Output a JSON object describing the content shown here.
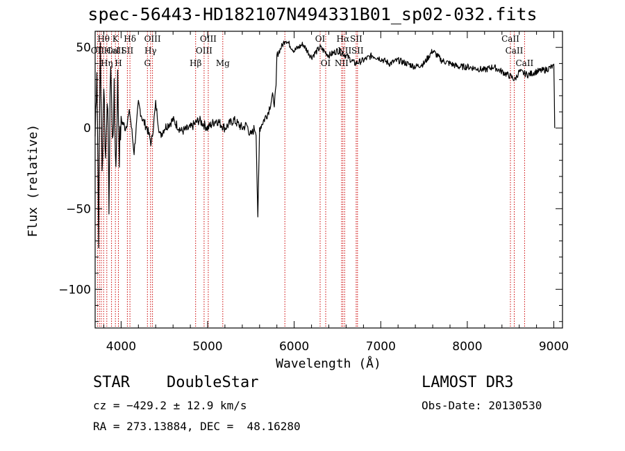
{
  "title": "spec-56443-HD182107N494331B01_sp02-032.fits",
  "info": {
    "class": "STAR",
    "subclass": "DoubleStar",
    "survey": "LAMOST DR3",
    "cz": "cz = −429.2 ± 12.9 km/s",
    "obsdate": "Obs-Date: 20130530",
    "radec": "RA = 273.13884, DEC =  48.16280"
  },
  "colors": {
    "line": "#000000",
    "marker": "#cc0000",
    "background": "#ffffff"
  },
  "chart_data": {
    "type": "line",
    "title": "spec-56443-HD182107N494331B01_sp02-032.fits",
    "xlabel": "Wavelength (Å)",
    "ylabel": "Flux (relative)",
    "xlim": [
      3700,
      9100
    ],
    "ylim": [
      -124,
      60
    ],
    "xticks": [
      4000,
      5000,
      6000,
      7000,
      8000,
      9000
    ],
    "xtick_labels": [
      "4000",
      "5000",
      "6000",
      "7000",
      "8000",
      "9000"
    ],
    "yticks": [
      50,
      0,
      -50,
      -100
    ],
    "ytick_labels": [
      "50",
      "0",
      "−50",
      "−100"
    ],
    "grid": false,
    "series": [
      {
        "x": [
          3700,
          3720,
          3740,
          3760,
          3780,
          3800,
          3820,
          3840,
          3860,
          3880,
          3900,
          3920,
          3940,
          3960,
          3980,
          4000,
          4050,
          4100,
          4150,
          4200,
          4250,
          4300,
          4350,
          4400,
          4450,
          4500,
          4600,
          4700,
          4800,
          4900,
          5000,
          5100,
          5200,
          5300,
          5400,
          5450,
          5500,
          5540,
          5560,
          5580,
          5600,
          5650,
          5700,
          5750,
          5770,
          5790,
          5800,
          5850,
          5900,
          6000,
          6100,
          6200,
          6300,
          6400,
          6500,
          6600,
          6700,
          6800,
          6900,
          7000,
          7100,
          7200,
          7300,
          7400,
          7500,
          7600,
          7700,
          7800,
          7900,
          8000,
          8100,
          8200,
          8300,
          8400,
          8500,
          8550,
          8600,
          8650,
          8700,
          8800,
          8900,
          8980,
          9000,
          9010
        ],
        "y": [
          -5,
          40,
          -65,
          55,
          -30,
          30,
          -20,
          25,
          -45,
          45,
          -10,
          20,
          -25,
          30,
          -15,
          5,
          0,
          10,
          -15,
          15,
          5,
          0,
          -10,
          15,
          -5,
          0,
          5,
          -2,
          0,
          5,
          0,
          5,
          0,
          5,
          0,
          2,
          -5,
          0,
          -2,
          -58,
          0,
          5,
          10,
          20,
          15,
          25,
          45,
          50,
          55,
          48,
          52,
          44,
          50,
          45,
          48,
          45,
          40,
          42,
          45,
          43,
          40,
          42,
          40,
          38,
          40,
          48,
          42,
          40,
          38,
          38,
          37,
          36,
          38,
          35,
          32,
          30,
          35,
          34,
          33,
          35,
          36,
          38,
          38,
          0
        ]
      }
    ],
    "spectral_lines": [
      {
        "label": "Hθ",
        "x": 3798,
        "row": 1
      },
      {
        "label": "CaII",
        "x": 3934,
        "row": 2
      },
      {
        "label": "OII",
        "x": 3727,
        "row": 2
      },
      {
        "label": "Hη",
        "x": 3835,
        "row": 3
      },
      {
        "label": "HeI",
        "x": 3889,
        "row": 2
      },
      {
        "label": "K",
        "x": 3934,
        "row": 1
      },
      {
        "label": "Hδ",
        "x": 4102,
        "row": 1
      },
      {
        "label": "SII",
        "x": 4072,
        "row": 2
      },
      {
        "label": "H",
        "x": 3969,
        "row": 3
      },
      {
        "label": "OIII",
        "x": 4363,
        "row": 1
      },
      {
        "label": "Hγ",
        "x": 4340,
        "row": 2
      },
      {
        "label": "G",
        "x": 4304,
        "row": 3
      },
      {
        "label": "Hβ",
        "x": 4861,
        "row": 3
      },
      {
        "label": "OIII",
        "x": 4959,
        "row": 2
      },
      {
        "label": "OIII",
        "x": 5007,
        "row": 1
      },
      {
        "label": "Mg",
        "x": 5175,
        "row": 3
      },
      {
        "label": "OI",
        "x": 6300,
        "row": 1
      },
      {
        "label": "OI",
        "x": 6364,
        "row": 3
      },
      {
        "label": "Hα",
        "x": 6563,
        "row": 1
      },
      {
        "label": "NII",
        "x": 6548,
        "row": 3
      },
      {
        "label": "NII",
        "x": 6583,
        "row": 2
      },
      {
        "label": "SII",
        "x": 6716,
        "row": 1
      },
      {
        "label": "SII",
        "x": 6731,
        "row": 2
      },
      {
        "label": "CaII",
        "x": 8498,
        "row": 1
      },
      {
        "label": "CaII",
        "x": 8542,
        "row": 2
      },
      {
        "label": "CaII",
        "x": 8662,
        "row": 3
      }
    ],
    "marker_lines_x": [
      3727,
      3750,
      3771,
      3798,
      3835,
      3889,
      3934,
      3969,
      4072,
      4102,
      4304,
      4340,
      4363,
      4861,
      4959,
      5007,
      5175,
      5892,
      6300,
      6364,
      6548,
      6563,
      6583,
      6716,
      6731,
      8498,
      8542,
      8662
    ]
  }
}
